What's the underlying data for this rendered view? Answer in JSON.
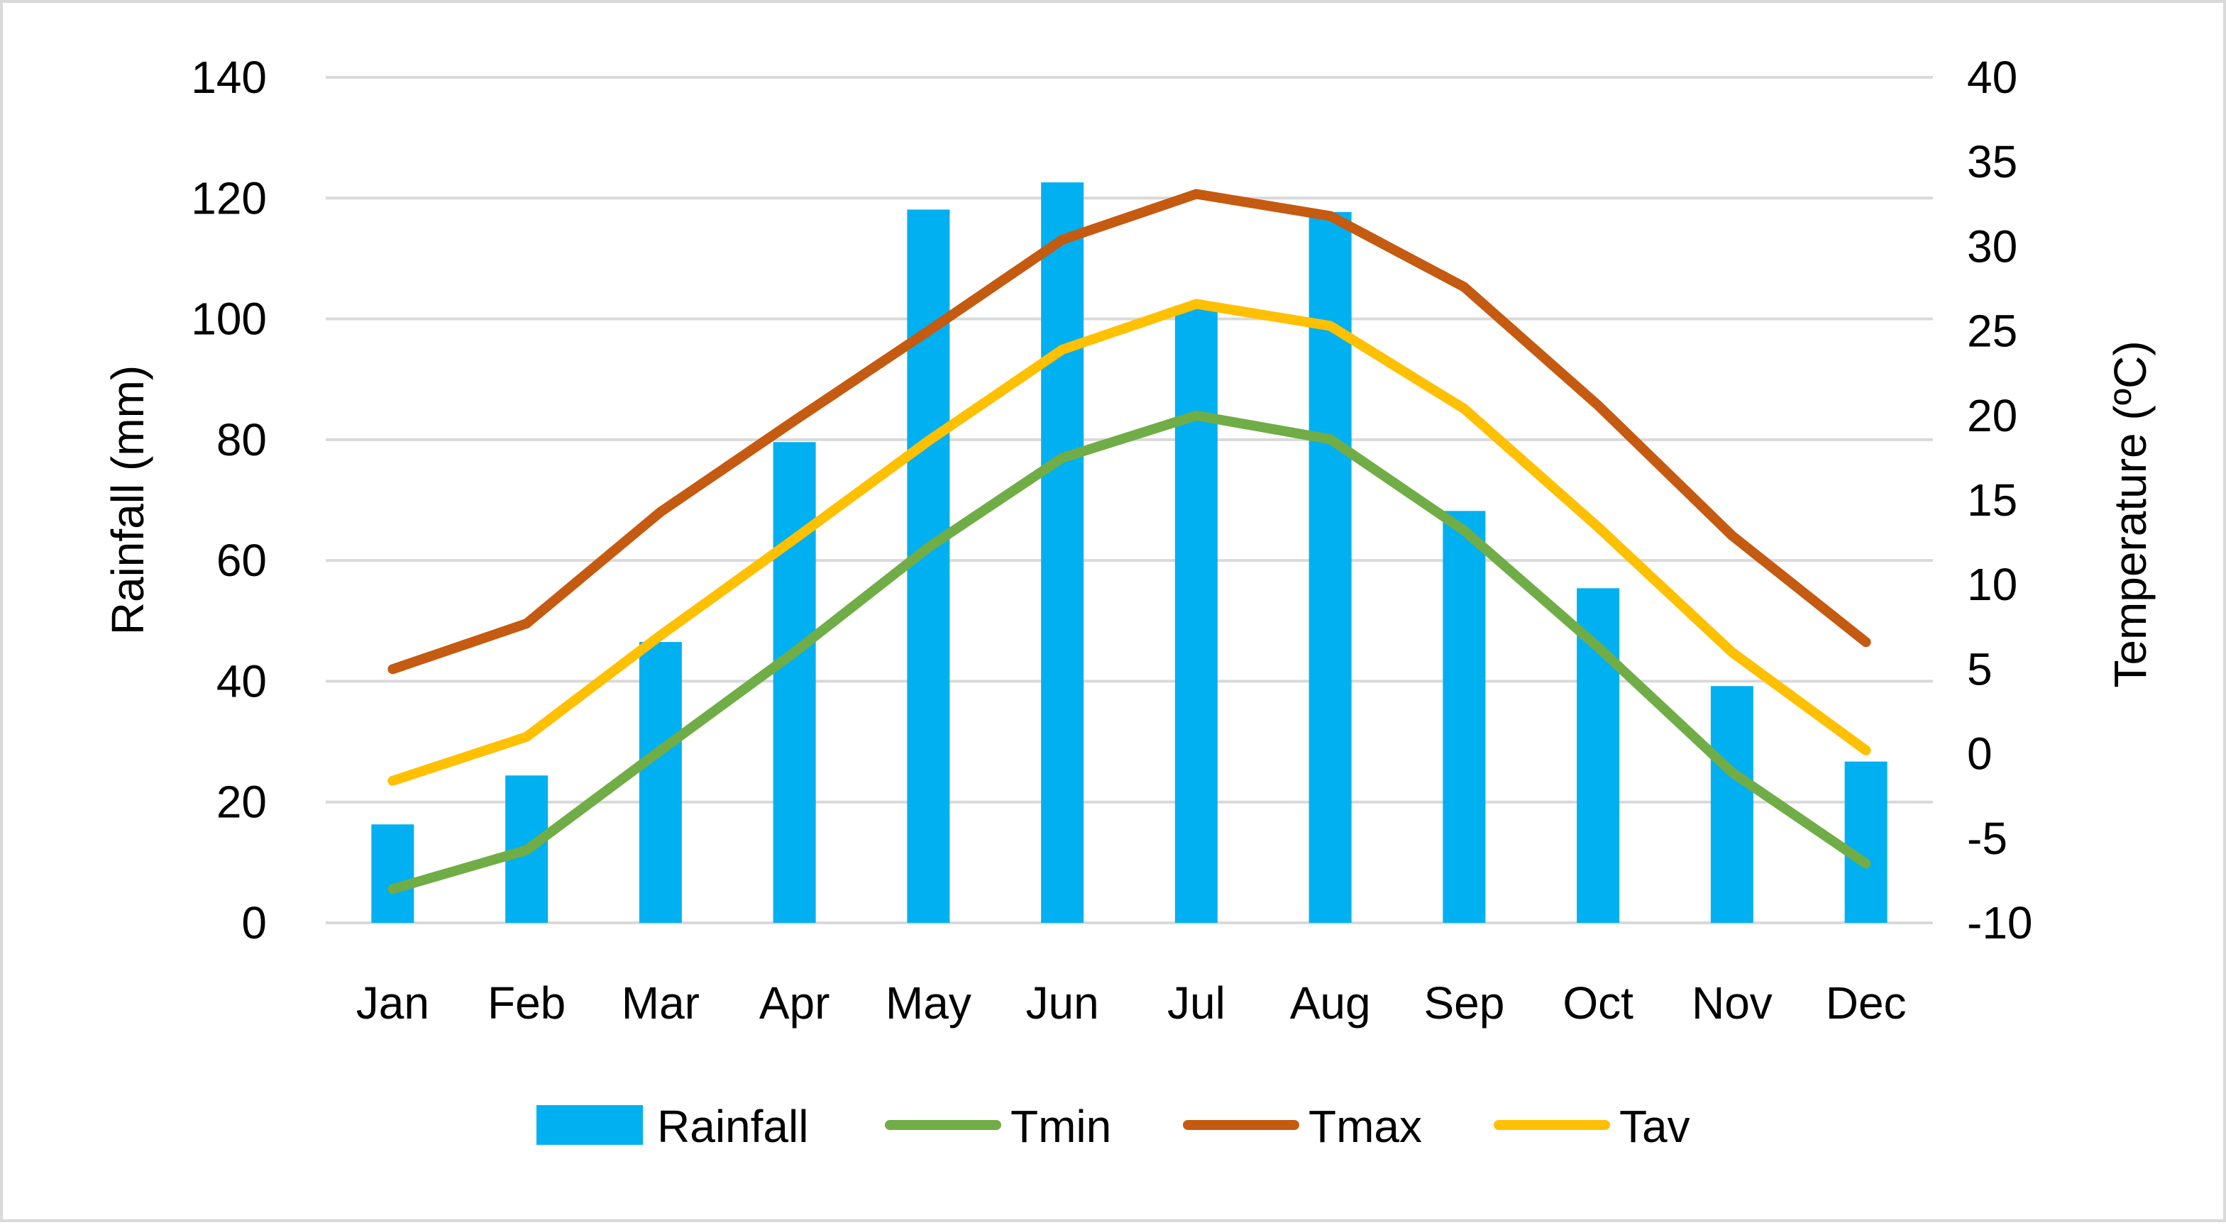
{
  "chart_data": {
    "type": "bar",
    "categories": [
      "Jan",
      "Feb",
      "Mar",
      "Apr",
      "May",
      "Jun",
      "Jul",
      "Aug",
      "Sep",
      "Oct",
      "Nov",
      "Dec"
    ],
    "series": [
      {
        "name": "Rainfall",
        "type": "bar",
        "axis": "left",
        "color": "#00b0f0",
        "values": [
          16.3,
          24.4,
          46.5,
          79.6,
          118.1,
          122.6,
          102.2,
          117.7,
          68.2,
          55.4,
          39.2,
          26.7
        ]
      },
      {
        "name": "Tmin",
        "type": "line",
        "axis": "right",
        "color": "#70ad47",
        "values": [
          -8.0,
          -5.7,
          0.2,
          6.0,
          12.2,
          17.5,
          20.0,
          18.6,
          13.2,
          6.3,
          -1.1,
          -6.5
        ]
      },
      {
        "name": "Tmax",
        "type": "line",
        "axis": "right",
        "color": "#c55a11",
        "values": [
          5.0,
          7.7,
          14.3,
          19.7,
          25.0,
          30.4,
          33.1,
          31.8,
          27.6,
          20.6,
          12.9,
          6.6
        ]
      },
      {
        "name": "Tav",
        "type": "line",
        "axis": "right",
        "color": "#ffc000",
        "values": [
          -1.6,
          1.0,
          7.0,
          12.7,
          18.5,
          23.9,
          26.6,
          25.3,
          20.4,
          13.4,
          6.0,
          0.2
        ]
      }
    ],
    "ylabel": "Rainfall (mm)",
    "ylim": [
      0,
      140
    ],
    "yticks": [
      "0",
      "20",
      "40",
      "60",
      "80",
      "100",
      "120",
      "140"
    ],
    "y2label": "Temperature (ºC)",
    "y2lim": [
      -10,
      40
    ],
    "y2ticks": [
      "-10",
      "-5",
      "0",
      "5",
      "10",
      "15",
      "20",
      "25",
      "30",
      "35",
      "40"
    ],
    "grid": true,
    "legend_position": "bottom"
  }
}
